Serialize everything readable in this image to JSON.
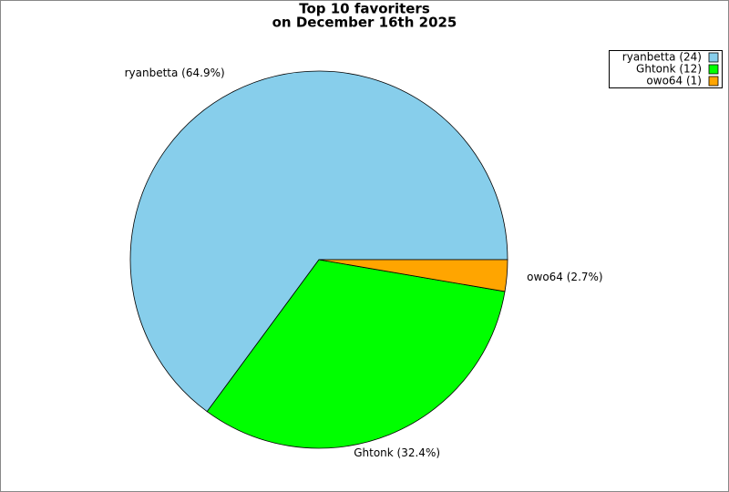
{
  "chart_data": {
    "type": "pie",
    "title": "Top 10 favoriters",
    "subtitle": "on December 16th 2025",
    "values": [
      64.9,
      32.4,
      2.7
    ],
    "value_labels": [
      "ryanbetta (64.9%)",
      "Ghtonk (32.4%)",
      "owo64 (2.7%)"
    ],
    "colors": [
      "#87ceeb",
      "#00ff00",
      "#ffa500"
    ],
    "legend_labels": [
      "ryanbetta (24)",
      "Ghtonk (12)",
      "owo64 (1)"
    ],
    "legend": "upper right"
  }
}
